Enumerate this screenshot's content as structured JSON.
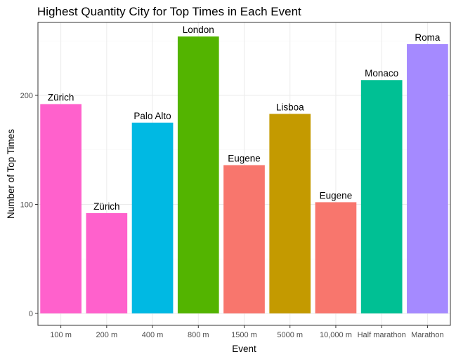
{
  "chart_data": {
    "type": "bar",
    "title": "Highest Quantity City for Top Times in Each Event",
    "xlabel": "Event",
    "ylabel": "Number of Top Times",
    "categories": [
      "100 m",
      "200 m",
      "400 m",
      "800 m",
      "1500 m",
      "5000 m",
      "10,000 m",
      "Half marathon",
      "Marathon"
    ],
    "values": [
      192,
      92,
      175,
      254,
      136,
      183,
      102,
      214,
      247
    ],
    "bar_labels": [
      "Zürich",
      "Zürich",
      "Palo Alto",
      "London",
      "Eugene",
      "Lisboa",
      "Eugene",
      "Monaco",
      "Roma"
    ],
    "bar_colors": [
      "#FF61CC",
      "#FF61CC",
      "#00B9E3",
      "#53B400",
      "#F8766D",
      "#C49A00",
      "#F8766D",
      "#00C094",
      "#A58AFF"
    ],
    "yticks": [
      0,
      100,
      200
    ],
    "ylim": [
      0,
      270
    ],
    "grid": true,
    "legend": "none"
  }
}
